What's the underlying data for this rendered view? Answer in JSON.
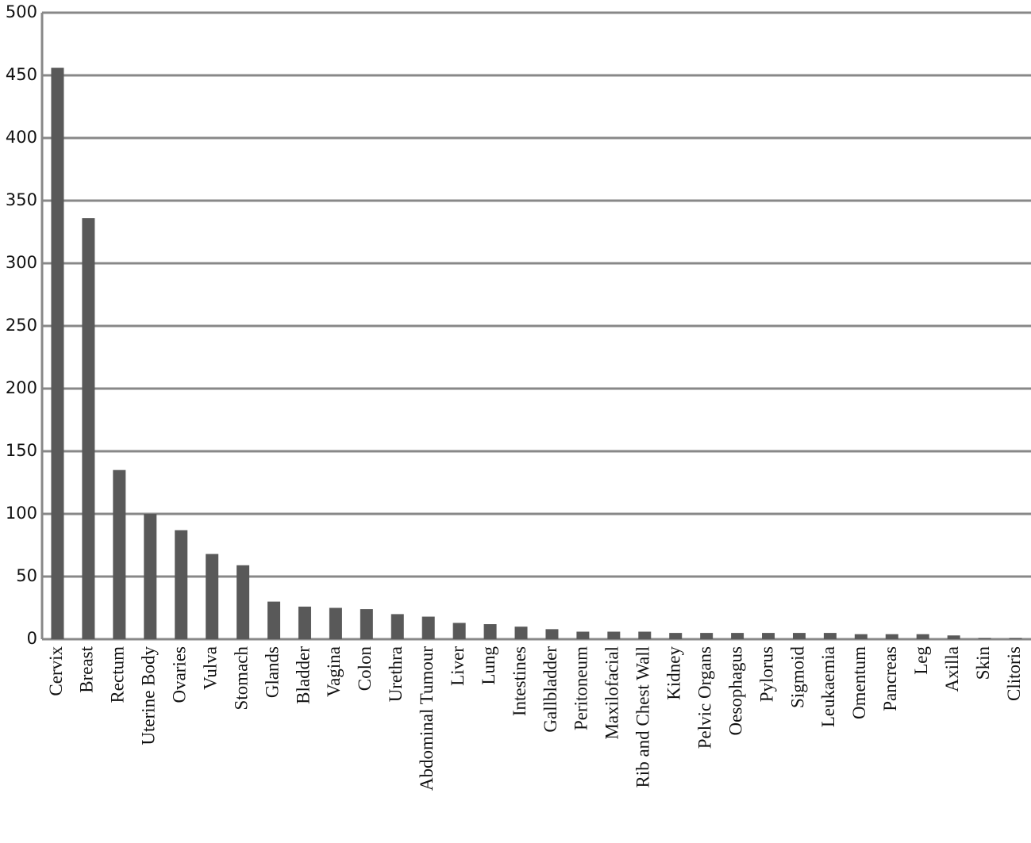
{
  "chart_data": {
    "type": "bar",
    "categories": [
      "Cervix",
      "Breast",
      "Rectum",
      "Uterine Body",
      "Ovaries",
      "Vulva",
      "Stomach",
      "Glands",
      "Bladder",
      "Vagina",
      "Colon",
      "Urethra",
      "Abdominal Tumour",
      "Liver",
      "Lung",
      "Intestines",
      "Gallbladder",
      "Peritoneum",
      "Maxilofacial",
      "Rib and Chest Wall",
      "Kidney",
      "Pelvic Organs",
      "Oesophagus",
      "Pylorus",
      "Sigmoid",
      "Leukaemia",
      "Omentum",
      "Pancreas",
      "Leg",
      "Axilla",
      "Skin",
      "Clitoris"
    ],
    "values": [
      456,
      336,
      135,
      100,
      87,
      68,
      59,
      30,
      26,
      25,
      24,
      20,
      18,
      13,
      12,
      10,
      8,
      6,
      6,
      6,
      5,
      5,
      5,
      5,
      5,
      5,
      4,
      4,
      4,
      3,
      1,
      1
    ],
    "color": "#595959",
    "ylim": [
      0,
      500
    ],
    "yticks": [
      0,
      50,
      100,
      150,
      200,
      250,
      300,
      350,
      400,
      450,
      500
    ],
    "grid": true
  }
}
